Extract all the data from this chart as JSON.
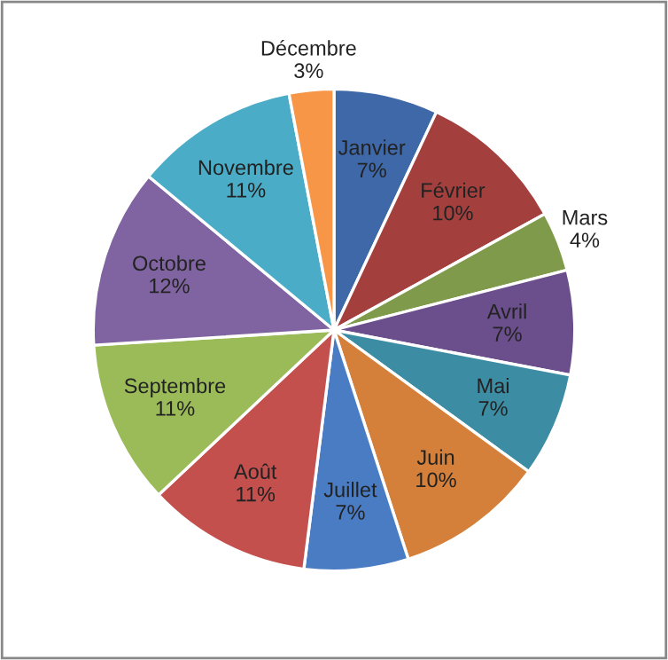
{
  "chart_data": {
    "type": "pie",
    "categories": [
      "Janvier",
      "Février",
      "Mars",
      "Avril",
      "Mai",
      "Juin",
      "Juillet",
      "Août",
      "Septembre",
      "Octobre",
      "Novembre",
      "Décembre"
    ],
    "values": [
      7,
      10,
      4,
      7,
      7,
      10,
      7,
      11,
      11,
      12,
      11,
      3
    ],
    "value_labels": [
      "7%",
      "10%",
      "4%",
      "7%",
      "7%",
      "10%",
      "7%",
      "11%",
      "11%",
      "12%",
      "11%",
      "3%"
    ],
    "colors": [
      "#3f68a8",
      "#a3403e",
      "#7e9a4a",
      "#6b4e8c",
      "#3c8da3",
      "#d4803a",
      "#4a7cc4",
      "#c4504e",
      "#9bbb59",
      "#8064a2",
      "#4aacc6",
      "#f79646"
    ],
    "legend": false
  }
}
